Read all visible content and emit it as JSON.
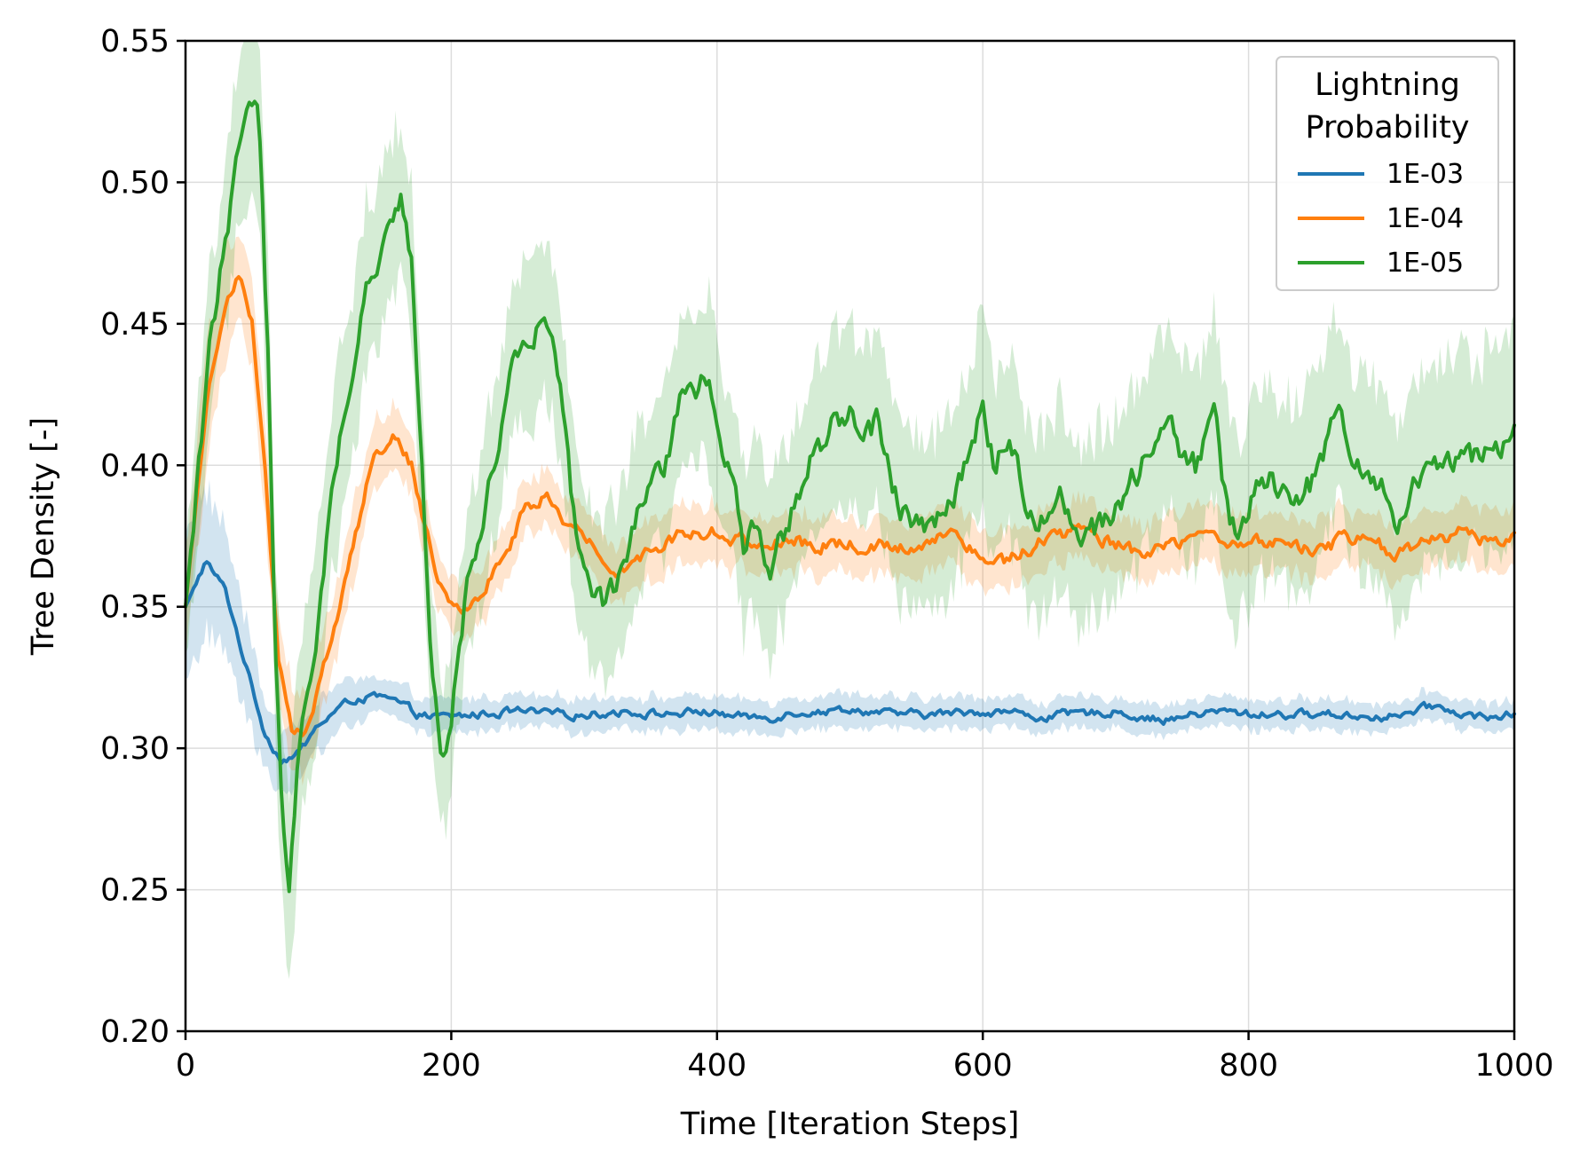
{
  "chart_data": {
    "type": "line",
    "title": "",
    "xlabel": "Time [Iteration Steps]",
    "ylabel": "Tree Density [-]",
    "xlim": [
      0,
      1000
    ],
    "ylim": [
      0.2,
      0.55
    ],
    "x_ticks": [
      0,
      200,
      400,
      600,
      800,
      1000
    ],
    "y_ticks": [
      0.2,
      0.25,
      0.3,
      0.35,
      0.4,
      0.45,
      0.5,
      0.55
    ],
    "x_tick_labels": [
      "0",
      "200",
      "400",
      "600",
      "800",
      "1000"
    ],
    "y_tick_labels": [
      "0.20",
      "0.25",
      "0.30",
      "0.35",
      "0.40",
      "0.45",
      "0.50",
      "0.55"
    ],
    "grid": true,
    "legend": {
      "title": "Lightning\nProbability",
      "title_lines": [
        "Lightning",
        "Probability"
      ],
      "placement": "top-right"
    },
    "series": [
      {
        "name": "1E-03",
        "color": "#1f77b4",
        "band_spread": [
          [
            0,
            0.03
          ],
          [
            60,
            0.012
          ],
          [
            150,
            0.006
          ],
          [
            1000,
            0.005
          ]
        ],
        "x": [
          0,
          15,
          30,
          45,
          60,
          72,
          85,
          100,
          115,
          130,
          145,
          160,
          175,
          185,
          200,
          220,
          250,
          270,
          300,
          330,
          360,
          390,
          420,
          440,
          460,
          480,
          500,
          530,
          560,
          600,
          620,
          640,
          670,
          700,
          720,
          740,
          760,
          780,
          800,
          820,
          850,
          870,
          900,
          920,
          940,
          960,
          980,
          1000
        ],
        "values": [
          0.35,
          0.366,
          0.356,
          0.33,
          0.305,
          0.296,
          0.298,
          0.308,
          0.314,
          0.318,
          0.318,
          0.316,
          0.312,
          0.311,
          0.311,
          0.312,
          0.313,
          0.312,
          0.312,
          0.313,
          0.312,
          0.313,
          0.311,
          0.311,
          0.313,
          0.313,
          0.314,
          0.312,
          0.312,
          0.313,
          0.313,
          0.311,
          0.312,
          0.313,
          0.311,
          0.31,
          0.312,
          0.313,
          0.312,
          0.312,
          0.312,
          0.312,
          0.311,
          0.312,
          0.315,
          0.312,
          0.311,
          0.312
        ]
      },
      {
        "name": "1E-04",
        "color": "#ff7f0e",
        "band_spread": [
          [
            0,
            0.02
          ],
          [
            80,
            0.015
          ],
          [
            200,
            0.01
          ],
          [
            1000,
            0.01
          ]
        ],
        "x": [
          0,
          15,
          30,
          40,
          50,
          60,
          70,
          80,
          90,
          100,
          120,
          140,
          150,
          160,
          170,
          180,
          190,
          200,
          210,
          225,
          240,
          255,
          270,
          280,
          295,
          310,
          325,
          340,
          360,
          380,
          400,
          420,
          440,
          460,
          480,
          500,
          520,
          540,
          560,
          580,
          600,
          620,
          640,
          660,
          680,
          700,
          720,
          740,
          760,
          780,
          800,
          820,
          840,
          860,
          880,
          900,
          920,
          940,
          960,
          980,
          1000
        ],
        "values": [
          0.35,
          0.42,
          0.46,
          0.468,
          0.45,
          0.4,
          0.33,
          0.305,
          0.305,
          0.32,
          0.36,
          0.4,
          0.408,
          0.41,
          0.4,
          0.38,
          0.36,
          0.352,
          0.35,
          0.355,
          0.37,
          0.383,
          0.39,
          0.383,
          0.378,
          0.368,
          0.362,
          0.368,
          0.373,
          0.377,
          0.377,
          0.373,
          0.372,
          0.373,
          0.372,
          0.372,
          0.371,
          0.371,
          0.374,
          0.377,
          0.368,
          0.366,
          0.373,
          0.376,
          0.377,
          0.372,
          0.368,
          0.371,
          0.373,
          0.374,
          0.372,
          0.373,
          0.371,
          0.372,
          0.374,
          0.371,
          0.369,
          0.374,
          0.376,
          0.374,
          0.374
        ]
      },
      {
        "name": "1E-05",
        "color": "#2ca02c",
        "band_spread": [
          [
            0,
            0.02
          ],
          [
            60,
            0.035
          ],
          [
            200,
            0.025
          ],
          [
            400,
            0.03
          ],
          [
            1000,
            0.035
          ]
        ],
        "x": [
          0,
          20,
          40,
          50,
          55,
          62,
          68,
          73,
          78,
          85,
          100,
          120,
          140,
          155,
          162,
          170,
          178,
          185,
          192,
          198,
          210,
          230,
          250,
          265,
          275,
          285,
          295,
          305,
          315,
          325,
          340,
          360,
          375,
          390,
          400,
          410,
          420,
          430,
          440,
          450,
          470,
          490,
          500,
          510,
          520,
          530,
          540,
          555,
          570,
          590,
          600,
          610,
          620,
          630,
          640,
          660,
          680,
          700,
          720,
          740,
          760,
          775,
          785,
          795,
          810,
          830,
          850,
          870,
          880,
          890,
          900,
          910,
          920,
          940,
          960,
          980,
          1000
        ],
        "values": [
          0.35,
          0.45,
          0.51,
          0.525,
          0.53,
          0.44,
          0.33,
          0.27,
          0.255,
          0.3,
          0.35,
          0.42,
          0.47,
          0.49,
          0.493,
          0.47,
          0.4,
          0.33,
          0.3,
          0.305,
          0.35,
          0.4,
          0.44,
          0.448,
          0.45,
          0.415,
          0.37,
          0.355,
          0.35,
          0.355,
          0.38,
          0.4,
          0.425,
          0.43,
          0.42,
          0.395,
          0.37,
          0.38,
          0.36,
          0.375,
          0.4,
          0.415,
          0.42,
          0.41,
          0.415,
          0.395,
          0.385,
          0.375,
          0.385,
          0.4,
          0.42,
          0.4,
          0.41,
          0.395,
          0.375,
          0.39,
          0.375,
          0.385,
          0.4,
          0.41,
          0.4,
          0.415,
          0.38,
          0.375,
          0.4,
          0.385,
          0.395,
          0.42,
          0.405,
          0.395,
          0.39,
          0.375,
          0.39,
          0.395,
          0.4,
          0.405,
          0.41
        ]
      }
    ]
  }
}
